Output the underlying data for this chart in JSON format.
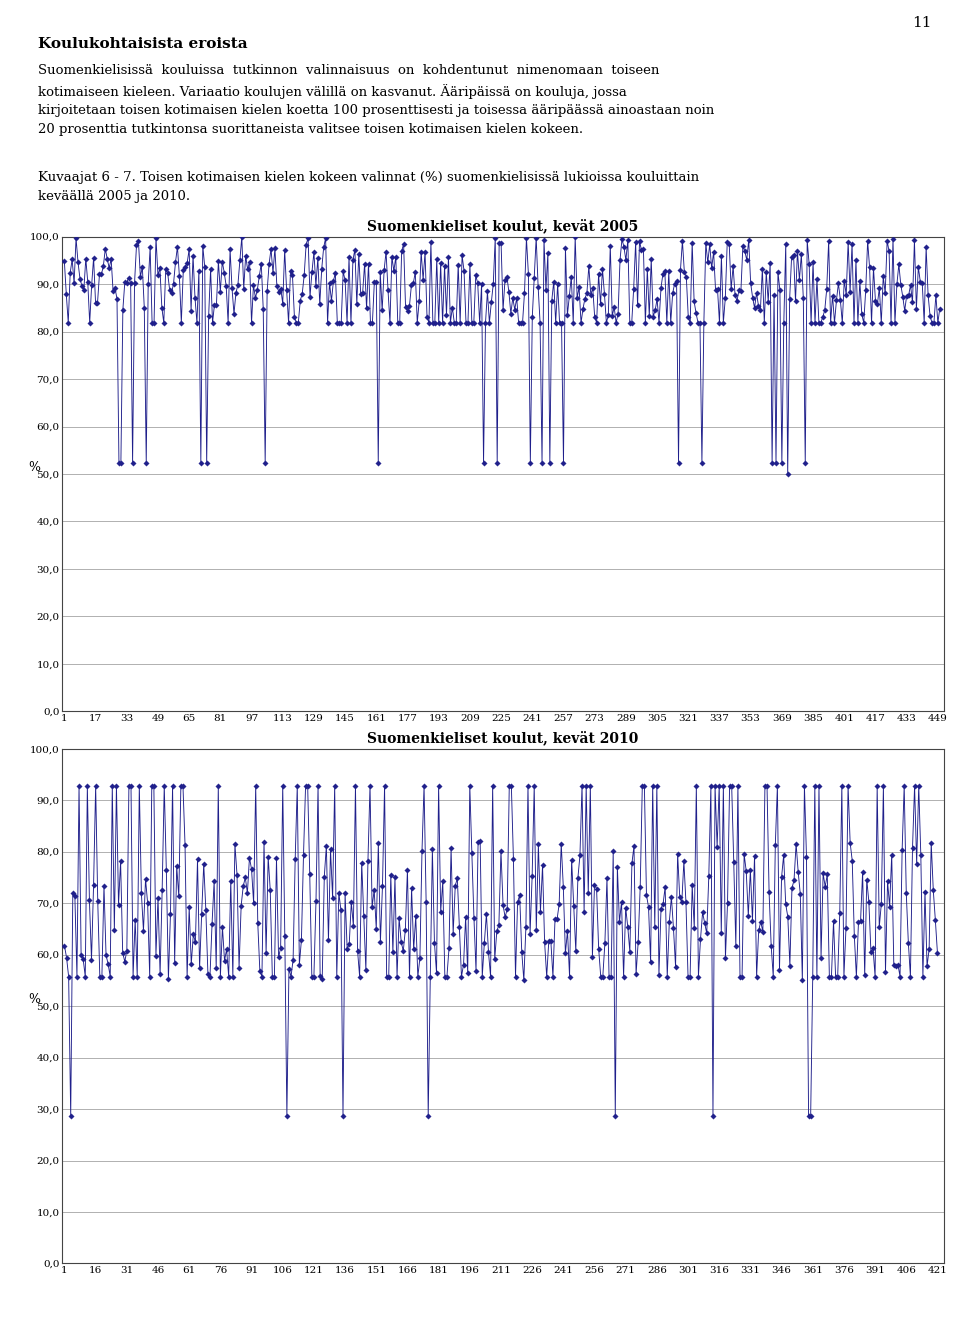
{
  "title1": "Suomenkieliset koulut, kevät 2005",
  "title2": "Suomenkieliset koulut, kevät 2010",
  "ylabel": "%",
  "ylim": [
    0,
    100
  ],
  "yticks": [
    0,
    10,
    20,
    30,
    40,
    50,
    60,
    70,
    80,
    90,
    100
  ],
  "ytick_labels": [
    "0,0",
    "10,0",
    "20,0",
    "30,0",
    "40,0",
    "50,0",
    "60,0",
    "70,0",
    "80,0",
    "90,0",
    "100,0"
  ],
  "xticks1": [
    1,
    17,
    33,
    49,
    65,
    81,
    97,
    113,
    129,
    145,
    161,
    177,
    193,
    209,
    225,
    241,
    257,
    273,
    289,
    305,
    321,
    337,
    353,
    369,
    385,
    401,
    417,
    433,
    449
  ],
  "xticks2": [
    1,
    16,
    31,
    46,
    61,
    76,
    91,
    106,
    121,
    136,
    151,
    166,
    181,
    196,
    211,
    226,
    241,
    256,
    271,
    286,
    301,
    316,
    331,
    346,
    361,
    376,
    391,
    406,
    421
  ],
  "xlim1": [
    0,
    452
  ],
  "xlim2": [
    0,
    424
  ],
  "n1": 450,
  "n2": 421,
  "seed1": 123,
  "seed2": 456,
  "line_color": "#1F1F8B",
  "marker_color": "#1F1F8B",
  "background_color": "#ffffff",
  "grid_color": "#b0b0b0",
  "title_fontsize": 10,
  "tick_fontsize": 7.5,
  "ylabel_fontsize": 9,
  "header1": "Koulukohtaisista eroista",
  "page_number": "11",
  "body_text": "Suomenkielisissä kouluissa tutkinnon valinnaisuus on kohdentunut nimenomaan toiseen kotimaiseen kieleen. Variaatio koulujen välillä on kasvanut. Ääripäissä on kouluja, jossa kirjoitetaan toisen kotimaisen kielen koetta 100 prosenttisesti ja toisessa ääripäässä ainoastaan noin 20 prosenttia tutkintonsa suorittaneista valitsee toisen kotimaisen kielen kokeen.",
  "caption_text": "Kuvaajat 6 - 7. Toisen kotimaisen kielen kokeen valinnat (%) suomenkielisissä lukioissa kouluittain keväällä 2005 ja 2010."
}
